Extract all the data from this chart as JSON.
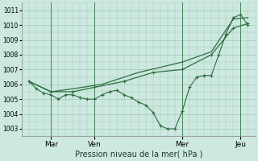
{
  "background_color": "#cce8df",
  "grid_color": "#a0c8bc",
  "line_color": "#2d6e3e",
  "title": "Pression niveau de la mer( hPa )",
  "ylim": [
    1002.5,
    1011.5
  ],
  "yticks": [
    1003,
    1004,
    1005,
    1006,
    1007,
    1008,
    1009,
    1010,
    1011
  ],
  "xlim": [
    0,
    16
  ],
  "day_labels": [
    "Mar",
    "Ven",
    "Mer",
    "Jeu"
  ],
  "day_positions": [
    0.5,
    3.5,
    9.5,
    13.5
  ],
  "vline_x": [
    2,
    5,
    11,
    15
  ],
  "series1_x": [
    0.5,
    1.0,
    1.5,
    2.0,
    2.5,
    3.0,
    3.5,
    4.0,
    4.5,
    5.0,
    5.5,
    6.0,
    6.5,
    7.0,
    7.5,
    8.0,
    8.5,
    9.0,
    9.5,
    10.0,
    10.5,
    11.0,
    11.5,
    12.0,
    12.5,
    13.0,
    13.5,
    14.0,
    14.5,
    15.0,
    15.5
  ],
  "series1_y": [
    1006.2,
    1005.7,
    1005.4,
    1005.3,
    1005.0,
    1005.3,
    1005.3,
    1005.1,
    1005.0,
    1005.0,
    1005.3,
    1005.5,
    1005.6,
    1005.3,
    1005.1,
    1004.8,
    1004.6,
    1004.1,
    1003.2,
    1003.0,
    1003.0,
    1004.2,
    1005.8,
    1006.5,
    1006.6,
    1006.6,
    1008.0,
    1009.4,
    1010.5,
    1010.7,
    1010.0
  ],
  "series2_x": [
    0.5,
    2.0,
    3.5,
    5.0,
    7.0,
    9.0,
    11.0,
    13.0,
    14.5,
    15.5
  ],
  "series2_y": [
    1006.2,
    1005.5,
    1005.5,
    1005.8,
    1006.2,
    1006.8,
    1007.0,
    1008.0,
    1009.8,
    1010.1
  ],
  "series3_x": [
    0.5,
    2.0,
    3.5,
    5.5,
    8.0,
    11.0,
    13.0,
    14.5,
    15.5
  ],
  "series3_y": [
    1006.2,
    1005.5,
    1005.7,
    1006.0,
    1006.8,
    1007.5,
    1008.2,
    1010.4,
    1010.5
  ]
}
